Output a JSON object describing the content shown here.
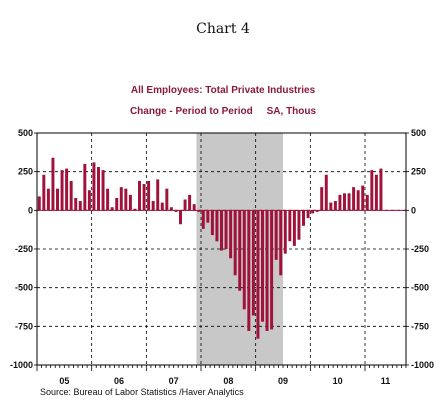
{
  "heading": "Chart 4",
  "chart_data": {
    "type": "bar",
    "title": "All Employees: Total Private Industries",
    "subtitle": "Change - Period to Period     SA, Thous",
    "source": "Source:  Bureau of Labor Statistics /Haver Analytics",
    "xlabel": "",
    "ylabel": "",
    "ylim": [
      -1000,
      500
    ],
    "yticks": [
      500,
      250,
      0,
      -250,
      -500,
      -750,
      -1000
    ],
    "ytick_labels_left": [
      "500",
      "250",
      "0",
      "-250",
      "-500",
      "-750",
      "-1000"
    ],
    "ytick_labels_right": [
      "500",
      "250",
      "0",
      "-250",
      "-500",
      "-750",
      "-1000"
    ],
    "grid": "dashed",
    "x_start": "2005-01",
    "x_end": "2011-09",
    "year_labels": [
      "05",
      "06",
      "07",
      "08",
      "09",
      "10",
      "11"
    ],
    "recession_shade": {
      "start": "2007-12",
      "end": "2009-06"
    },
    "bar_color": "#a0123a",
    "shade_color": "#c8c8c8",
    "categories": [
      "2005-01",
      "2005-02",
      "2005-03",
      "2005-04",
      "2005-05",
      "2005-06",
      "2005-07",
      "2005-08",
      "2005-09",
      "2005-10",
      "2005-11",
      "2005-12",
      "2006-01",
      "2006-02",
      "2006-03",
      "2006-04",
      "2006-05",
      "2006-06",
      "2006-07",
      "2006-08",
      "2006-09",
      "2006-10",
      "2006-11",
      "2006-12",
      "2007-01",
      "2007-02",
      "2007-03",
      "2007-04",
      "2007-05",
      "2007-06",
      "2007-07",
      "2007-08",
      "2007-09",
      "2007-10",
      "2007-11",
      "2007-12",
      "2008-01",
      "2008-02",
      "2008-03",
      "2008-04",
      "2008-05",
      "2008-06",
      "2008-07",
      "2008-08",
      "2008-09",
      "2008-10",
      "2008-11",
      "2008-12",
      "2009-01",
      "2009-02",
      "2009-03",
      "2009-04",
      "2009-05",
      "2009-06",
      "2009-07",
      "2009-08",
      "2009-09",
      "2009-10",
      "2009-11",
      "2009-12",
      "2010-01",
      "2010-02",
      "2010-03",
      "2010-04",
      "2010-05",
      "2010-06",
      "2010-07",
      "2010-08",
      "2010-09",
      "2010-10",
      "2010-11",
      "2010-12",
      "2011-01",
      "2011-02",
      "2011-03",
      "2011-04"
    ],
    "values": [
      90,
      230,
      140,
      340,
      140,
      260,
      270,
      190,
      80,
      60,
      300,
      130,
      310,
      280,
      260,
      140,
      20,
      80,
      150,
      140,
      100,
      10,
      190,
      170,
      190,
      60,
      200,
      50,
      140,
      20,
      -10,
      -90,
      70,
      100,
      40,
      -10,
      -120,
      -80,
      -160,
      -200,
      -260,
      -250,
      -310,
      -420,
      -520,
      -640,
      -780,
      -680,
      -830,
      -720,
      -780,
      -770,
      -320,
      -420,
      -280,
      -200,
      -230,
      -190,
      -100,
      -50,
      -20,
      -10,
      150,
      230,
      50,
      60,
      100,
      110,
      110,
      150,
      130,
      160,
      100,
      260,
      230,
      270
    ]
  }
}
